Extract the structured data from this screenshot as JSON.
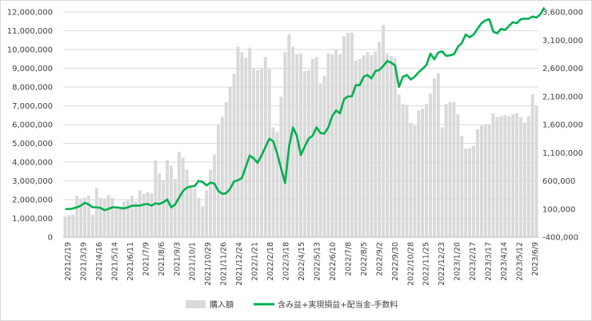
{
  "chart_data": {
    "type": "bar+line",
    "title": "",
    "xlabel": "",
    "ylabel": "",
    "ylim_left": [
      0,
      12000000
    ],
    "left_ticks": [
      "0",
      "1,000,000",
      "2,000,000",
      "3,000,000",
      "4,000,000",
      "5,000,000",
      "6,000,000",
      "7,000,000",
      "8,000,000",
      "9,000,000",
      "10,000,000",
      "11,000,000",
      "12,000,000"
    ],
    "ylim_right": [
      -400000,
      3600000
    ],
    "right_ticks": [
      {
        "label": "-400,000",
        "color": "#ff0000"
      },
      {
        "label": "100,000",
        "color": "#404040"
      },
      {
        "label": "600,000",
        "color": "#404040"
      },
      {
        "label": "1,100,000",
        "color": "#404040"
      },
      {
        "label": "1,600,000",
        "color": "#404040"
      },
      {
        "label": "2,100,000",
        "color": "#404040"
      },
      {
        "label": "2,600,000",
        "color": "#404040"
      },
      {
        "label": "3,100,000",
        "color": "#404040"
      },
      {
        "label": "3,600,000",
        "color": "#404040"
      }
    ],
    "x_tick_labels": [
      "2021/2/19",
      "2021/3/19",
      "2021/4/16",
      "2021/5/14",
      "2021/6/11",
      "2021/7/9",
      "2021/8/6",
      "2021/9/3",
      "2021/10/1",
      "2021/10/29",
      "2021/11/26",
      "2021/12/24",
      "2022/1/21",
      "2022/2/18",
      "2022/3/18",
      "2022/4/15",
      "2022/5/13",
      "2022/6/10",
      "2022/7/8",
      "2022/8/5",
      "2022/9/2",
      "2022/9/30",
      "2022/10/28",
      "2022/11/25",
      "2022/12/23",
      "2023/1/20",
      "2023/2/17",
      "2023/3/17",
      "2023/4/14",
      "2023/5/12",
      "2023/6/9"
    ],
    "series": [
      {
        "name": "購入額",
        "type": "bar",
        "axis": "left",
        "color": "#d9d9d9",
        "values": [
          1100000,
          1150000,
          1200000,
          2200000,
          2050000,
          2100000,
          2200000,
          1200000,
          2600000,
          2100000,
          2050000,
          2250000,
          2100000,
          1600000,
          1550000,
          1900000,
          1950000,
          2200000,
          1900000,
          2500000,
          2300000,
          2400000,
          2350000,
          4100000,
          3400000,
          3050000,
          4100000,
          3800000,
          3100000,
          4550000,
          4250000,
          3600000,
          2650000,
          2600000,
          2100000,
          1650000,
          2500000,
          3600000,
          4400000,
          6000000,
          6400000,
          7200000,
          8000000,
          8700000,
          10150000,
          9850000,
          9550000,
          10100000,
          9000000,
          8900000,
          8950000,
          9600000,
          8950000,
          5850000,
          5600000,
          7500000,
          9850000,
          10800000,
          10150000,
          9750000,
          9800000,
          8850000,
          8900000,
          9500000,
          9600000,
          8200000,
          8600000,
          9800000,
          9750000,
          10000000,
          9750000,
          10700000,
          10900000,
          10900000,
          9400000,
          9500000,
          9700000,
          9850000,
          9700000,
          9900000,
          10400000,
          11300000,
          9800000,
          9650000,
          9550000,
          7600000,
          7100000,
          7050000,
          6100000,
          5950000,
          6750000,
          6850000,
          7100000,
          7650000,
          8450000,
          8750000,
          5850000,
          7100000,
          7200000,
          7200000,
          6550000,
          5400000,
          4700000,
          4750000,
          4850000,
          5750000,
          5950000,
          6000000,
          6000000,
          6600000,
          6400000,
          6450000,
          6500000,
          6450000,
          6550000,
          6600000,
          6400000,
          6100000,
          6450000,
          7600000,
          7000000
        ]
      },
      {
        "name": "含み益+実現損益+配当金-手数料",
        "type": "line",
        "axis": "right",
        "color": "#00b050",
        "values": [
          100000,
          100000,
          110000,
          130000,
          160000,
          210000,
          180000,
          130000,
          130000,
          120000,
          80000,
          100000,
          130000,
          130000,
          120000,
          110000,
          130000,
          160000,
          160000,
          160000,
          180000,
          190000,
          160000,
          200000,
          190000,
          220000,
          270000,
          130000,
          180000,
          300000,
          420000,
          480000,
          500000,
          510000,
          600000,
          580000,
          520000,
          570000,
          550000,
          420000,
          370000,
          380000,
          460000,
          590000,
          610000,
          650000,
          850000,
          1050000,
          1000000,
          920000,
          1050000,
          1200000,
          1350000,
          1300000,
          1080000,
          820000,
          560000,
          1200000,
          1550000,
          1400000,
          1060000,
          1210000,
          1350000,
          1400000,
          1550000,
          1450000,
          1440000,
          1550000,
          1750000,
          1850000,
          1800000,
          2050000,
          2100000,
          2100000,
          2300000,
          2300000,
          2450000,
          2480000,
          2420000,
          2550000,
          2570000,
          2640000,
          2730000,
          2700000,
          2650000,
          2270000,
          2450000,
          2480000,
          2400000,
          2450000,
          2530000,
          2590000,
          2660000,
          2860000,
          2760000,
          2880000,
          2900000,
          2820000,
          2830000,
          2850000,
          2980000,
          3050000,
          3200000,
          3150000,
          3200000,
          3300000,
          3400000,
          3450000,
          3470000,
          3250000,
          3220000,
          3300000,
          3280000,
          3350000,
          3420000,
          3400000,
          3470000,
          3480000,
          3480000,
          3520000,
          3500000,
          3560000,
          3680000
        ]
      }
    ],
    "grid": "horizontal",
    "legend_position": "bottom"
  }
}
